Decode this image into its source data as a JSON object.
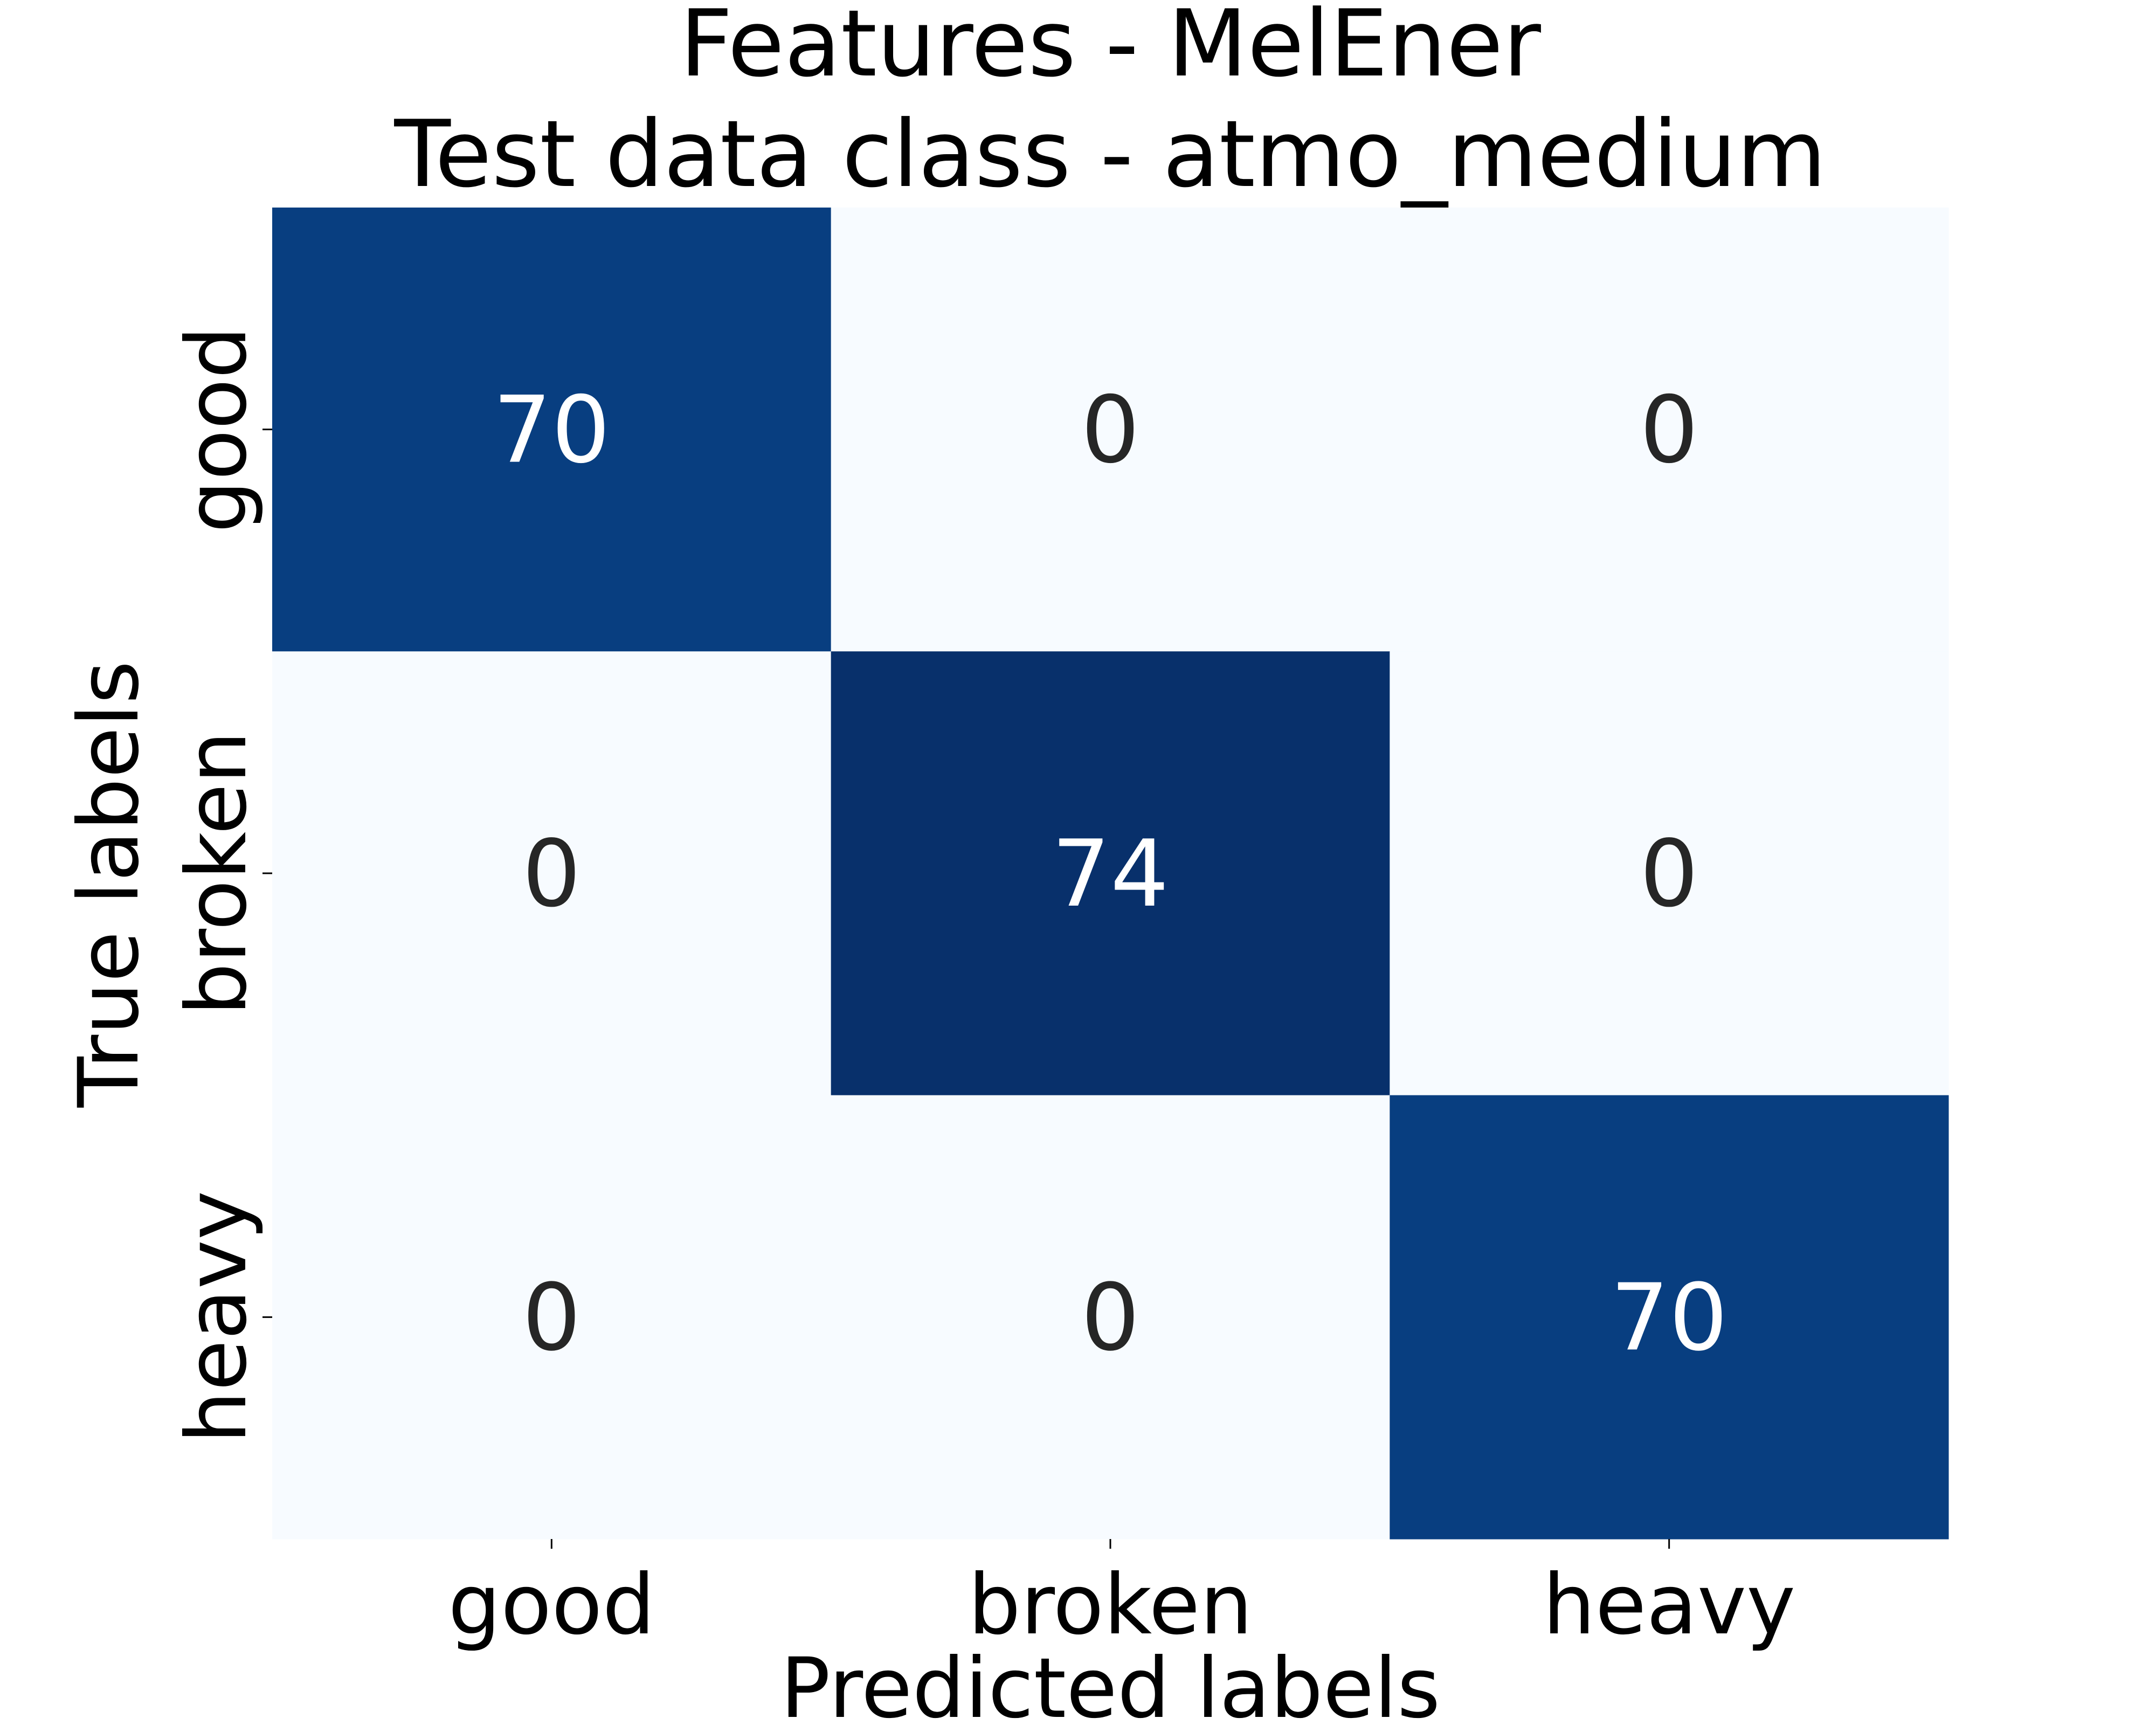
{
  "chart_data": {
    "type": "heatmap",
    "title_lines": [
      "Features - MelEner",
      "Test data class - atmo_medium"
    ],
    "xlabel": "Predicted labels",
    "ylabel": "True labels",
    "x_categories": [
      "good",
      "broken",
      "heavy"
    ],
    "y_categories": [
      "good",
      "broken",
      "heavy"
    ],
    "values": [
      [
        70,
        0,
        0
      ],
      [
        0,
        74,
        0
      ],
      [
        0,
        0,
        70
      ]
    ],
    "colormap": "Blues",
    "color_low": "#f7fbff",
    "color_high": "#08306b",
    "text_dark": "#262626",
    "text_light": "#ffffff",
    "colorbar": false,
    "grid": false
  }
}
